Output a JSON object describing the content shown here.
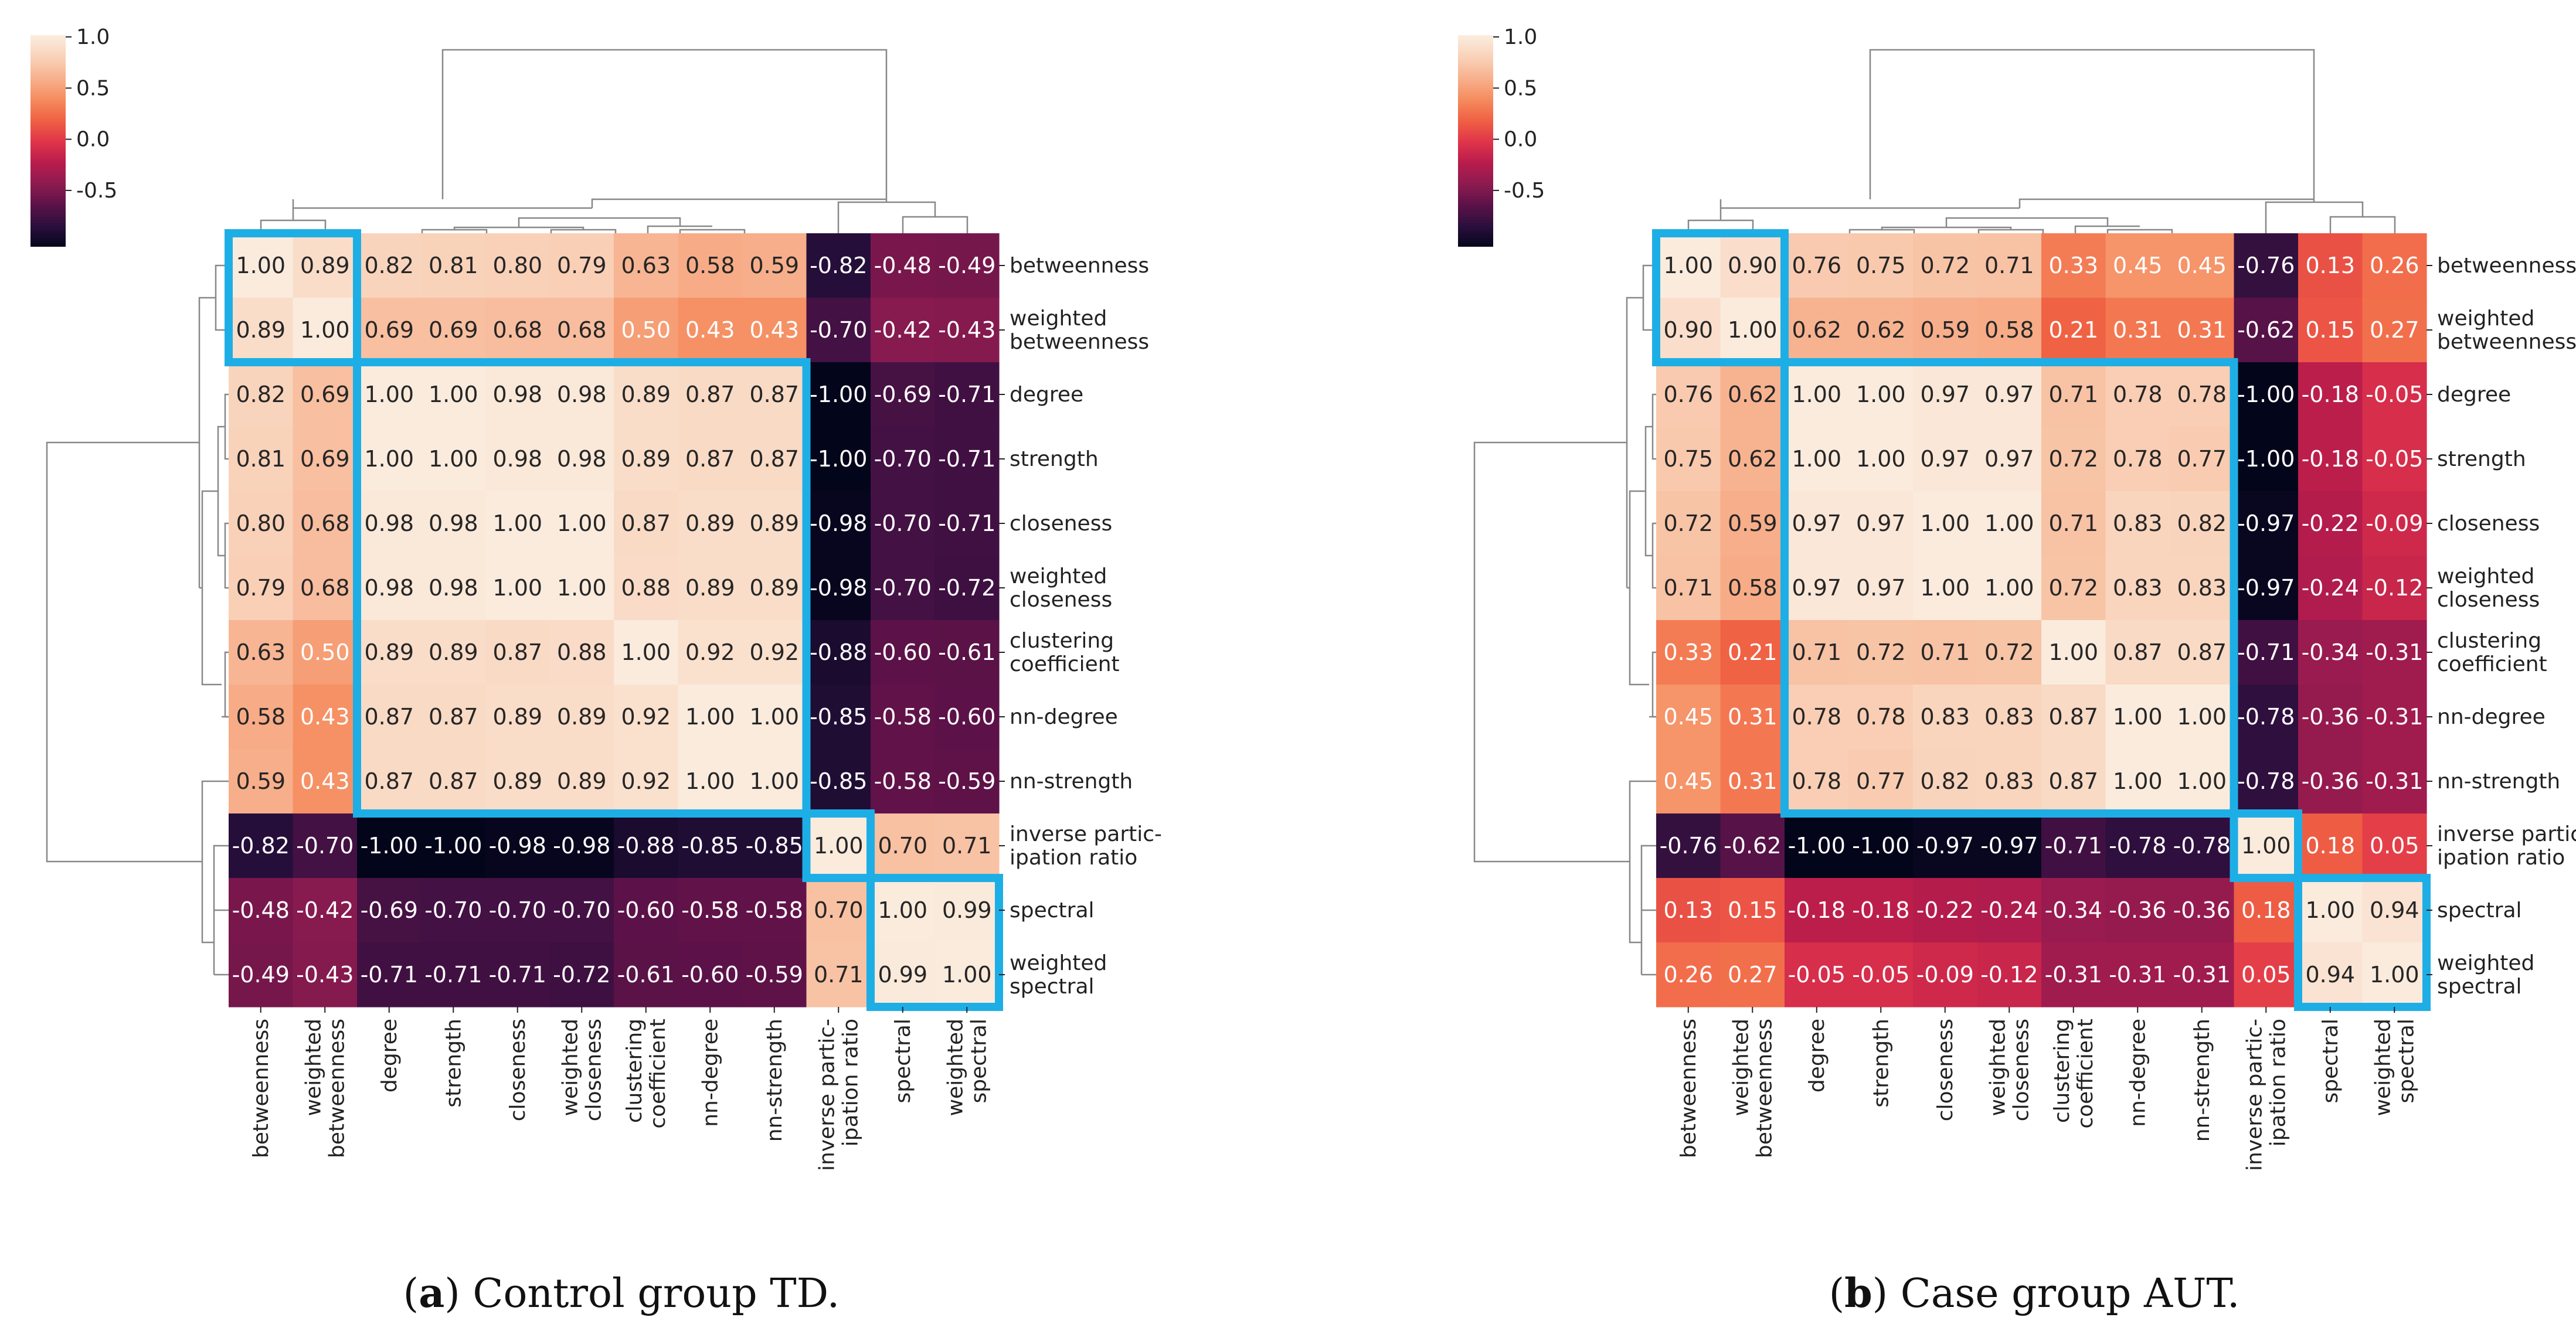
{
  "colors": {
    "box": "#1eaee6",
    "dendrogram": "#888888",
    "colormap": [
      "#03051a",
      "#2a0f3d",
      "#5c1248",
      "#8c1b50",
      "#b81c4c",
      "#e0344a",
      "#f06043",
      "#f58b5e",
      "#f7b08c",
      "#f9d1b8",
      "#faebdd"
    ]
  },
  "colorbar": {
    "ticks": [
      "1.0",
      "0.5",
      "0.0",
      "-0.5"
    ],
    "tick_values": [
      1.0,
      0.5,
      0.0,
      -0.5
    ],
    "range": [
      -1.0,
      1.0
    ]
  },
  "chart_data": [
    {
      "type": "heatmap",
      "title": "",
      "caption_bold": "a",
      "caption_rest": "Control group TD.",
      "row_labels": [
        [
          "betweenness"
        ],
        [
          "weighted",
          "betweenness"
        ],
        [
          "degree"
        ],
        [
          "strength"
        ],
        [
          "closeness"
        ],
        [
          "weighted",
          "closeness"
        ],
        [
          "clustering",
          "coefficient"
        ],
        [
          "nn-degree"
        ],
        [
          "nn-strength"
        ],
        [
          "inverse partic-",
          "ipation ratio"
        ],
        [
          "spectral"
        ],
        [
          "weighted",
          "spectral"
        ]
      ],
      "col_labels": [
        [
          "betweenness"
        ],
        [
          "weighted",
          "betweenness"
        ],
        [
          "degree"
        ],
        [
          "strength"
        ],
        [
          "closeness"
        ],
        [
          "weighted",
          "closeness"
        ],
        [
          "clustering",
          "coefficient"
        ],
        [
          "nn-degree"
        ],
        [
          "nn-strength"
        ],
        [
          "inverse partic-",
          "ipation ratio"
        ],
        [
          "spectral"
        ],
        [
          "weighted",
          "spectral"
        ]
      ],
      "values": [
        [
          1.0,
          0.89,
          0.82,
          0.81,
          0.8,
          0.79,
          0.63,
          0.58,
          0.59,
          -0.82,
          -0.48,
          -0.49
        ],
        [
          0.89,
          1.0,
          0.69,
          0.69,
          0.68,
          0.68,
          0.5,
          0.43,
          0.43,
          -0.7,
          -0.42,
          -0.43
        ],
        [
          0.82,
          0.69,
          1.0,
          1.0,
          0.98,
          0.98,
          0.89,
          0.87,
          0.87,
          -1.0,
          -0.69,
          -0.71
        ],
        [
          0.81,
          0.69,
          1.0,
          1.0,
          0.98,
          0.98,
          0.89,
          0.87,
          0.87,
          -1.0,
          -0.7,
          -0.71
        ],
        [
          0.8,
          0.68,
          0.98,
          0.98,
          1.0,
          1.0,
          0.87,
          0.89,
          0.89,
          -0.98,
          -0.7,
          -0.71
        ],
        [
          0.79,
          0.68,
          0.98,
          0.98,
          1.0,
          1.0,
          0.88,
          0.89,
          0.89,
          -0.98,
          -0.7,
          -0.72
        ],
        [
          0.63,
          0.5,
          0.89,
          0.89,
          0.87,
          0.88,
          1.0,
          0.92,
          0.92,
          -0.88,
          -0.6,
          -0.61
        ],
        [
          0.58,
          0.43,
          0.87,
          0.87,
          0.89,
          0.89,
          0.92,
          1.0,
          1.0,
          -0.85,
          -0.58,
          -0.6
        ],
        [
          0.59,
          0.43,
          0.87,
          0.87,
          0.89,
          0.89,
          0.92,
          1.0,
          1.0,
          -0.85,
          -0.58,
          -0.59
        ],
        [
          -0.82,
          -0.7,
          -1.0,
          -1.0,
          -0.98,
          -0.98,
          -0.88,
          -0.85,
          -0.85,
          1.0,
          0.7,
          0.71
        ],
        [
          -0.48,
          -0.42,
          -0.69,
          -0.7,
          -0.7,
          -0.7,
          -0.6,
          -0.58,
          -0.58,
          0.7,
          1.0,
          0.99
        ],
        [
          -0.49,
          -0.43,
          -0.71,
          -0.71,
          -0.71,
          -0.72,
          -0.61,
          -0.6,
          -0.59,
          0.71,
          0.99,
          1.0
        ]
      ],
      "clusters": [
        [
          0,
          1
        ],
        [
          2,
          8
        ],
        [
          9,
          9
        ],
        [
          10,
          11
        ]
      ],
      "vmin": -1.0,
      "vmax": 1.0
    },
    {
      "type": "heatmap",
      "title": "",
      "caption_bold": "b",
      "caption_rest": "Case group AUT.",
      "row_labels": [
        [
          "betweenness"
        ],
        [
          "weighted",
          "betweenness"
        ],
        [
          "degree"
        ],
        [
          "strength"
        ],
        [
          "closeness"
        ],
        [
          "weighted",
          "closeness"
        ],
        [
          "clustering",
          "coefficient"
        ],
        [
          "nn-degree"
        ],
        [
          "nn-strength"
        ],
        [
          "inverse partic-",
          "ipation ratio"
        ],
        [
          "spectral"
        ],
        [
          "weighted",
          "spectral"
        ]
      ],
      "col_labels": [
        [
          "betweenness"
        ],
        [
          "weighted",
          "betweenness"
        ],
        [
          "degree"
        ],
        [
          "strength"
        ],
        [
          "closeness"
        ],
        [
          "weighted",
          "closeness"
        ],
        [
          "clustering",
          "coefficient"
        ],
        [
          "nn-degree"
        ],
        [
          "nn-strength"
        ],
        [
          "inverse partic-",
          "ipation ratio"
        ],
        [
          "spectral"
        ],
        [
          "weighted",
          "spectral"
        ]
      ],
      "values": [
        [
          1.0,
          0.9,
          0.76,
          0.75,
          0.72,
          0.71,
          0.33,
          0.45,
          0.45,
          -0.76,
          0.13,
          0.26
        ],
        [
          0.9,
          1.0,
          0.62,
          0.62,
          0.59,
          0.58,
          0.21,
          0.31,
          0.31,
          -0.62,
          0.15,
          0.27
        ],
        [
          0.76,
          0.62,
          1.0,
          1.0,
          0.97,
          0.97,
          0.71,
          0.78,
          0.78,
          -1.0,
          -0.18,
          -0.05
        ],
        [
          0.75,
          0.62,
          1.0,
          1.0,
          0.97,
          0.97,
          0.72,
          0.78,
          0.77,
          -1.0,
          -0.18,
          -0.05
        ],
        [
          0.72,
          0.59,
          0.97,
          0.97,
          1.0,
          1.0,
          0.71,
          0.83,
          0.82,
          -0.97,
          -0.22,
          -0.09
        ],
        [
          0.71,
          0.58,
          0.97,
          0.97,
          1.0,
          1.0,
          0.72,
          0.83,
          0.83,
          -0.97,
          -0.24,
          -0.12
        ],
        [
          0.33,
          0.21,
          0.71,
          0.72,
          0.71,
          0.72,
          1.0,
          0.87,
          0.87,
          -0.71,
          -0.34,
          -0.31
        ],
        [
          0.45,
          0.31,
          0.78,
          0.78,
          0.83,
          0.83,
          0.87,
          1.0,
          1.0,
          -0.78,
          -0.36,
          -0.31
        ],
        [
          0.45,
          0.31,
          0.78,
          0.77,
          0.82,
          0.83,
          0.87,
          1.0,
          1.0,
          -0.78,
          -0.36,
          -0.31
        ],
        [
          -0.76,
          -0.62,
          -1.0,
          -1.0,
          -0.97,
          -0.97,
          -0.71,
          -0.78,
          -0.78,
          1.0,
          0.18,
          0.05
        ],
        [
          0.13,
          0.15,
          -0.18,
          -0.18,
          -0.22,
          -0.24,
          -0.34,
          -0.36,
          -0.36,
          0.18,
          1.0,
          0.94
        ],
        [
          0.26,
          0.27,
          -0.05,
          -0.05,
          -0.09,
          -0.12,
          -0.31,
          -0.31,
          -0.31,
          0.05,
          0.94,
          1.0
        ]
      ],
      "clusters": [
        [
          0,
          1
        ],
        [
          2,
          8
        ],
        [
          9,
          9
        ],
        [
          10,
          11
        ]
      ],
      "vmin": -1.0,
      "vmax": 1.0
    }
  ]
}
